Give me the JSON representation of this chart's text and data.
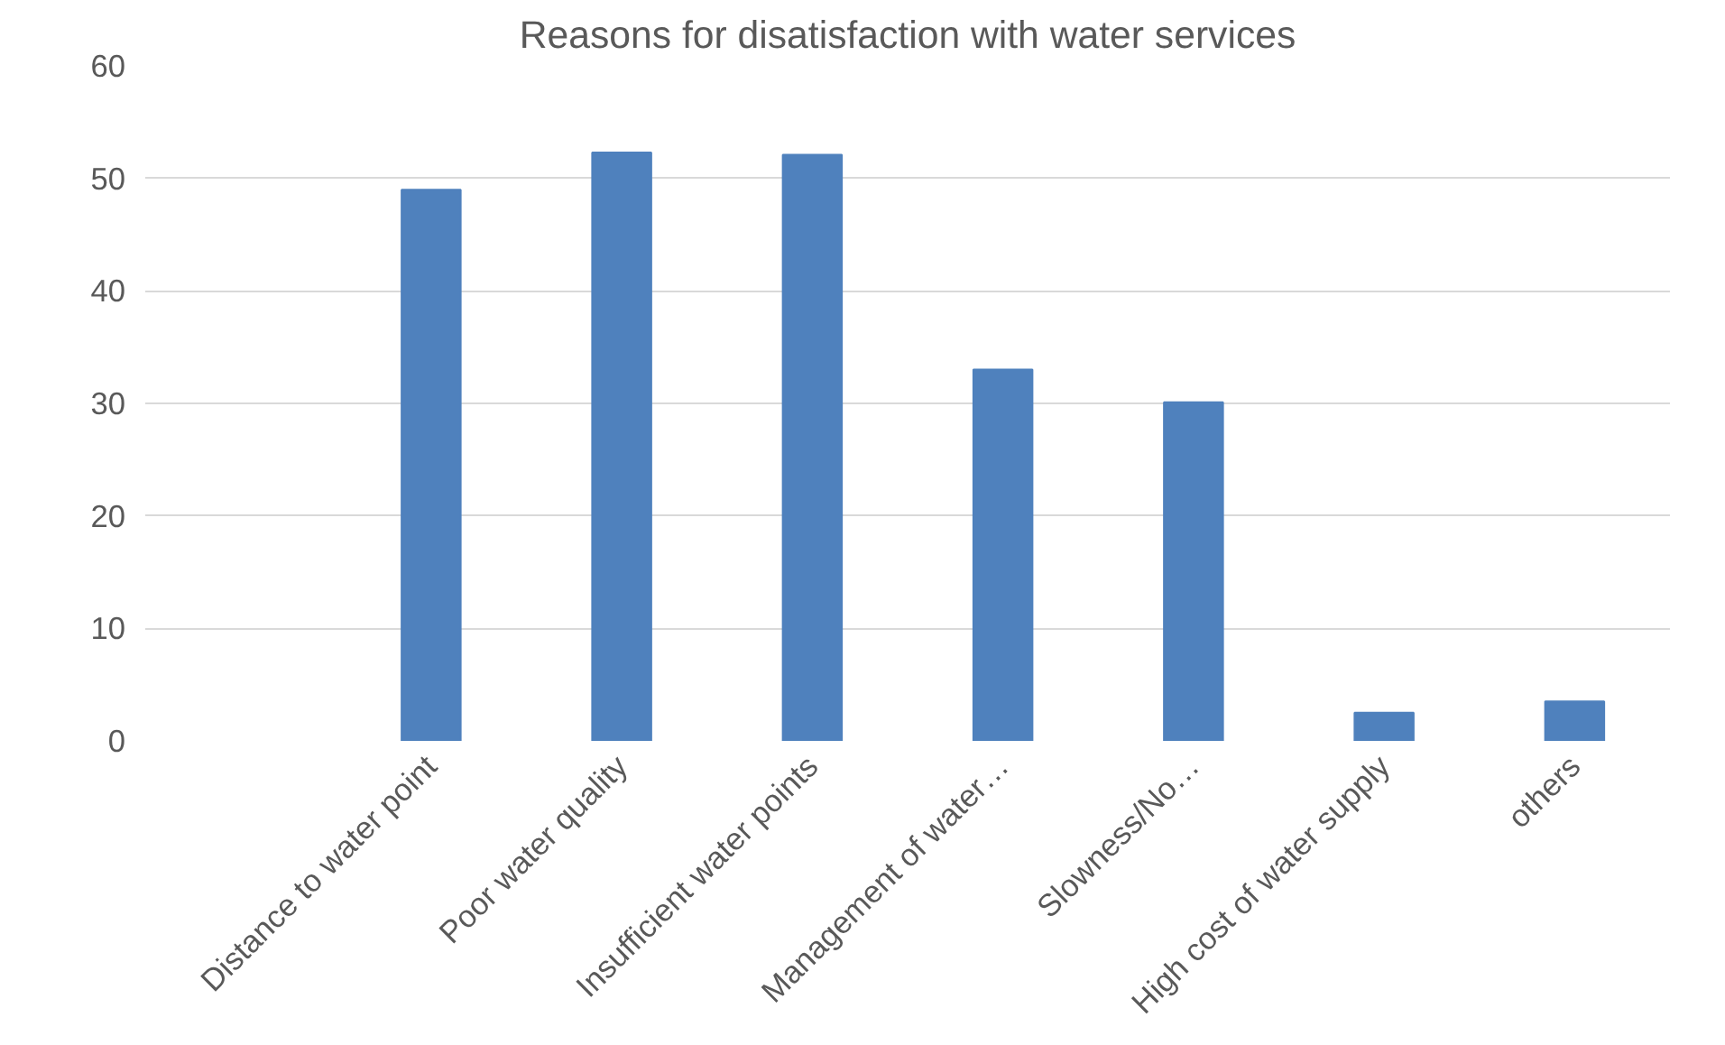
{
  "chart_data": {
    "type": "bar",
    "title": "Reasons for disatisfaction with water services",
    "categories": [
      null,
      "Distance to water point",
      "Poor water quality",
      "Insufficient water points",
      "Management of water…",
      "Slowness/No…",
      "High cost of water supply",
      "others"
    ],
    "values": [
      null,
      49,
      52.3,
      52.1,
      33,
      30.1,
      2.5,
      3.5
    ],
    "color": "#4f81bd",
    "ylim": [
      0,
      60
    ],
    "yticks": [
      0,
      10,
      20,
      30,
      40,
      50,
      60
    ],
    "grid": "y"
  }
}
